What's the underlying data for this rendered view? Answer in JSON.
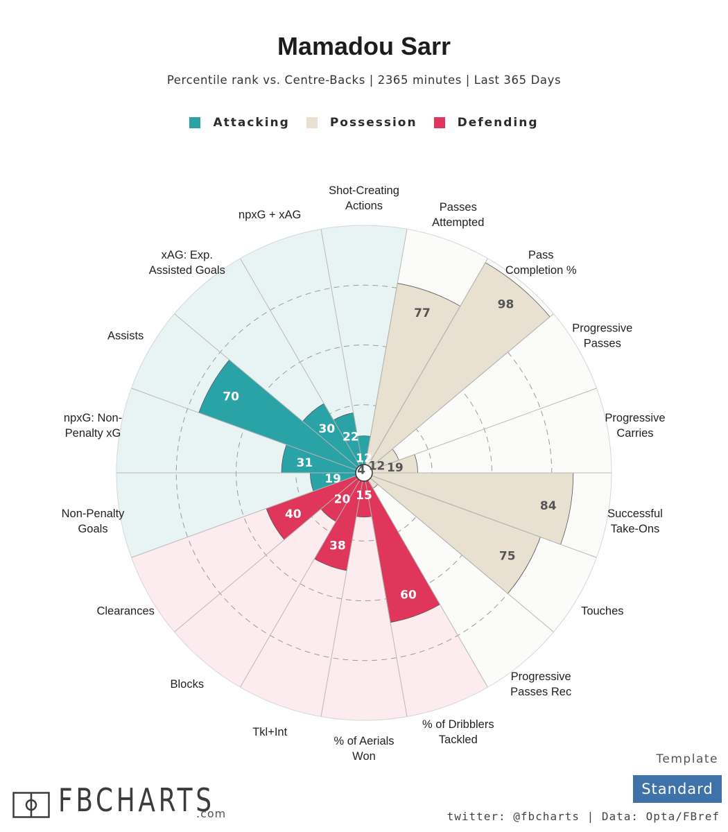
{
  "header": {
    "title": "Mamadou Sarr",
    "subtitle": "Percentile rank vs. Centre-Backs | 2365 minutes | Last 365 Days"
  },
  "legend": [
    {
      "label": "Attacking",
      "color": "#2aa3a7"
    },
    {
      "label": "Possession",
      "color": "#e8e0d0"
    },
    {
      "label": "Defending",
      "color": "#e0365c"
    }
  ],
  "chart_data": {
    "type": "polar-bar",
    "title": "Mamadou Sarr",
    "subtitle": "Percentile rank vs. Centre-Backs | 2365 minutes | Last 365 Days",
    "ylim": [
      0,
      100
    ],
    "grid": true,
    "grid_levels": [
      25,
      50,
      75
    ],
    "legend_position": "top",
    "categories": [
      {
        "label": "Shot-Creating\nActions",
        "value": 12,
        "group": "Attacking"
      },
      {
        "label": "Passes\nAttempted",
        "value": 77,
        "group": "Possession"
      },
      {
        "label": "Pass\nCompletion %",
        "value": 98,
        "group": "Possession"
      },
      {
        "label": "Progressive\nPasses",
        "value": 12,
        "group": "Possession"
      },
      {
        "label": "Progressive\nCarries",
        "value": 19,
        "group": "Possession"
      },
      {
        "label": "Successful\nTake-Ons",
        "value": 84,
        "group": "Possession"
      },
      {
        "label": "Touches",
        "value": 75,
        "group": "Possession"
      },
      {
        "label": "Progressive\nPasses Rec",
        "value": 4,
        "group": "Possession"
      },
      {
        "label": "% of Dribblers\nTackled",
        "value": 60,
        "group": "Defending"
      },
      {
        "label": "% of Aerials\nWon",
        "value": 15,
        "group": "Defending"
      },
      {
        "label": "Tkl+Int",
        "value": 38,
        "group": "Defending"
      },
      {
        "label": "Blocks",
        "value": 20,
        "group": "Defending"
      },
      {
        "label": "Clearances",
        "value": 40,
        "group": "Defending"
      },
      {
        "label": "Non-Penalty\nGoals",
        "value": 19,
        "group": "Attacking"
      },
      {
        "label": "npxG: Non-\nPenalty xG",
        "value": 31,
        "group": "Attacking"
      },
      {
        "label": "Assists",
        "value": 70,
        "group": "Attacking"
      },
      {
        "label": "xAG: Exp.\nAssisted Goals",
        "value": 30,
        "group": "Attacking"
      },
      {
        "label": "npxG + xAG",
        "value": 22,
        "group": "Attacking"
      }
    ],
    "colors": {
      "Attacking": {
        "bar": "#2aa3a7",
        "bg": "#e8f4f4",
        "label_text": "#ffffff"
      },
      "Possession": {
        "bar": "#e8e0d0",
        "bg": "#fbfbf9",
        "label_text": "#555555"
      },
      "Defending": {
        "bar": "#e0365c",
        "bg": "#fcebef",
        "label_text": "#ffffff"
      }
    }
  },
  "footer": {
    "template_label": "Template",
    "template_value": "Standard",
    "credit": "twitter: @fbcharts | Data: Opta/FBref",
    "brand_name": "FBCHARTS",
    "brand_domain": ".com"
  }
}
